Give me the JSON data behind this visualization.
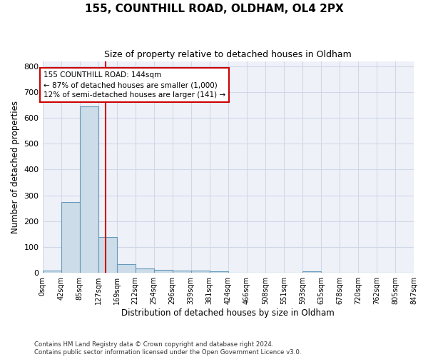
{
  "title": "155, COUNTHILL ROAD, OLDHAM, OL4 2PX",
  "subtitle": "Size of property relative to detached houses in Oldham",
  "xlabel": "Distribution of detached houses by size in Oldham",
  "ylabel": "Number of detached properties",
  "bar_color": "#ccdce8",
  "bar_edge_color": "#6699bb",
  "grid_color": "#d0d8e8",
  "background_color": "#eef2f8",
  "vline_x": 144,
  "vline_color": "#cc0000",
  "bin_width": 42.5,
  "bin_edges": [
    0,
    42.5,
    85,
    127.5,
    170,
    212.5,
    255,
    297.5,
    340,
    382.5,
    425,
    467.5,
    510,
    552.5,
    595,
    637.5,
    680,
    722.5,
    765,
    807.5,
    850
  ],
  "bar_heights": [
    8,
    275,
    645,
    140,
    35,
    18,
    12,
    10,
    10,
    5,
    0,
    0,
    0,
    0,
    7,
    0,
    0,
    0,
    0,
    0
  ],
  "annotation_line1": "155 COUNTHILL ROAD: 144sqm",
  "annotation_line2": "← 87% of detached houses are smaller (1,000)",
  "annotation_line3": "12% of semi-detached houses are larger (141) →",
  "annotation_box_color": "#ffffff",
  "annotation_box_edge": "#cc0000",
  "footnote1": "Contains HM Land Registry data © Crown copyright and database right 2024.",
  "footnote2": "Contains public sector information licensed under the Open Government Licence v3.0.",
  "ylim": [
    0,
    820
  ],
  "yticks": [
    0,
    100,
    200,
    300,
    400,
    500,
    600,
    700,
    800
  ],
  "xtick_labels": [
    "0sqm",
    "42sqm",
    "85sqm",
    "127sqm",
    "169sqm",
    "212sqm",
    "254sqm",
    "296sqm",
    "339sqm",
    "381sqm",
    "424sqm",
    "466sqm",
    "508sqm",
    "551sqm",
    "593sqm",
    "635sqm",
    "678sqm",
    "720sqm",
    "762sqm",
    "805sqm",
    "847sqm"
  ]
}
